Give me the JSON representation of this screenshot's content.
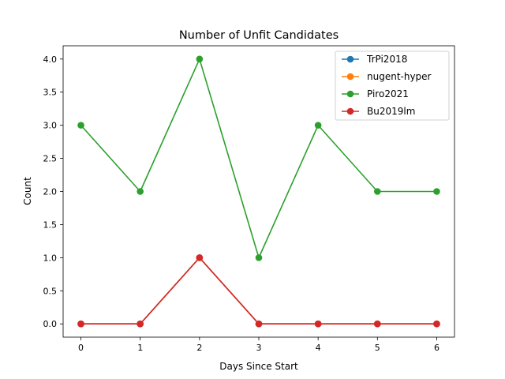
{
  "chart_data": {
    "type": "line",
    "title": "Number of Unfit Candidates",
    "xlabel": "Days Since Start",
    "ylabel": "Count",
    "x": [
      0,
      1,
      2,
      3,
      4,
      5,
      6
    ],
    "xlim": [
      -0.3,
      6.3
    ],
    "ylim": [
      -0.2,
      4.2
    ],
    "xticks": [
      0,
      1,
      2,
      3,
      4,
      5,
      6
    ],
    "xtick_labels": [
      "0",
      "1",
      "2",
      "3",
      "4",
      "5",
      "6"
    ],
    "yticks": [
      0,
      0.5,
      1,
      1.5,
      2,
      2.5,
      3,
      3.5,
      4
    ],
    "ytick_labels": [
      "0.0",
      "0.5",
      "1.0",
      "1.5",
      "2.0",
      "2.5",
      "3.0",
      "3.5",
      "4.0"
    ],
    "grid": false,
    "legend_position": "top-right",
    "series": [
      {
        "name": "TrPi2018",
        "color": "#1f77b4",
        "values": [
          0,
          0,
          1,
          0,
          0,
          0,
          0
        ]
      },
      {
        "name": "nugent-hyper",
        "color": "#ff7f0e",
        "values": [
          0,
          0,
          1,
          0,
          0,
          0,
          0
        ]
      },
      {
        "name": "Piro2021",
        "color": "#2ca02c",
        "values": [
          3,
          2,
          4,
          1,
          3,
          2,
          2
        ]
      },
      {
        "name": "Bu2019lm",
        "color": "#d62728",
        "values": [
          0,
          0,
          1,
          0,
          0,
          0,
          0
        ]
      }
    ]
  }
}
